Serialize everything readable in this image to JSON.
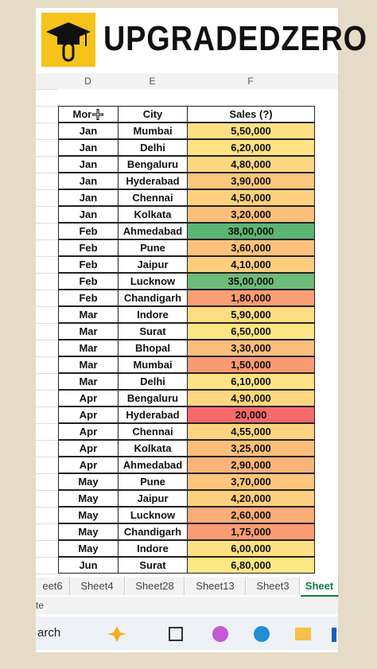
{
  "header": {
    "title": "UPGRADEDZERO"
  },
  "columns": [
    "D",
    "E",
    "F"
  ],
  "table": {
    "headers": [
      "Month",
      "City",
      "Sales (?)"
    ],
    "rows": [
      [
        "Jan",
        "Mumbai",
        "5,50,000"
      ],
      [
        "Jan",
        "Delhi",
        "6,20,000"
      ],
      [
        "Jan",
        "Bengaluru",
        "4,80,000"
      ],
      [
        "Jan",
        "Hyderabad",
        "3,90,000"
      ],
      [
        "Jan",
        "Chennai",
        "4,50,000"
      ],
      [
        "Jan",
        "Kolkata",
        "3,20,000"
      ],
      [
        "Feb",
        "Ahmedabad",
        "38,00,000"
      ],
      [
        "Feb",
        "Pune",
        "3,60,000"
      ],
      [
        "Feb",
        "Jaipur",
        "4,10,000"
      ],
      [
        "Feb",
        "Lucknow",
        "35,00,000"
      ],
      [
        "Feb",
        "Chandigarh",
        "1,80,000"
      ],
      [
        "Mar",
        "Indore",
        "5,90,000"
      ],
      [
        "Mar",
        "Surat",
        "6,50,000"
      ],
      [
        "Mar",
        "Bhopal",
        "3,30,000"
      ],
      [
        "Mar",
        "Mumbai",
        "1,50,000"
      ],
      [
        "Mar",
        "Delhi",
        "6,10,000"
      ],
      [
        "Apr",
        "Bengaluru",
        "4,90,000"
      ],
      [
        "Apr",
        "Hyderabad",
        "20,000"
      ],
      [
        "Apr",
        "Chennai",
        "4,55,000"
      ],
      [
        "Apr",
        "Kolkata",
        "3,25,000"
      ],
      [
        "Apr",
        "Ahmedabad",
        "2,90,000"
      ],
      [
        "May",
        "Pune",
        "3,70,000"
      ],
      [
        "May",
        "Jaipur",
        "4,20,000"
      ],
      [
        "May",
        "Lucknow",
        "2,60,000"
      ],
      [
        "May",
        "Chandigarh",
        "1,75,000"
      ],
      [
        "May",
        "Indore",
        "6,00,000"
      ],
      [
        "Jun",
        "Surat",
        "6,80,000"
      ]
    ],
    "colors": [
      "#fee083",
      "#fee283",
      "#fdd680",
      "#fcc67c",
      "#fdd17f",
      "#fcbe7b",
      "#5bb673",
      "#fcc27c",
      "#fdcd7e",
      "#6dbb78",
      "#fa9f74",
      "#fedd82",
      "#fee584",
      "#fcbf7b",
      "#fa9a73",
      "#fee283",
      "#fdd880",
      "#f8696b",
      "#fdd37f",
      "#fcbe7b",
      "#fbb379",
      "#fcc47c",
      "#fdcf7e",
      "#fbac77",
      "#fa9c73",
      "#fee082",
      "#fee785"
    ]
  },
  "tabs": [
    "eet6",
    "Sheet4",
    "Sheet28",
    "Sheet13",
    "Sheet3",
    "Sheet"
  ],
  "status": "te",
  "taskbar": {
    "search": "arch"
  }
}
